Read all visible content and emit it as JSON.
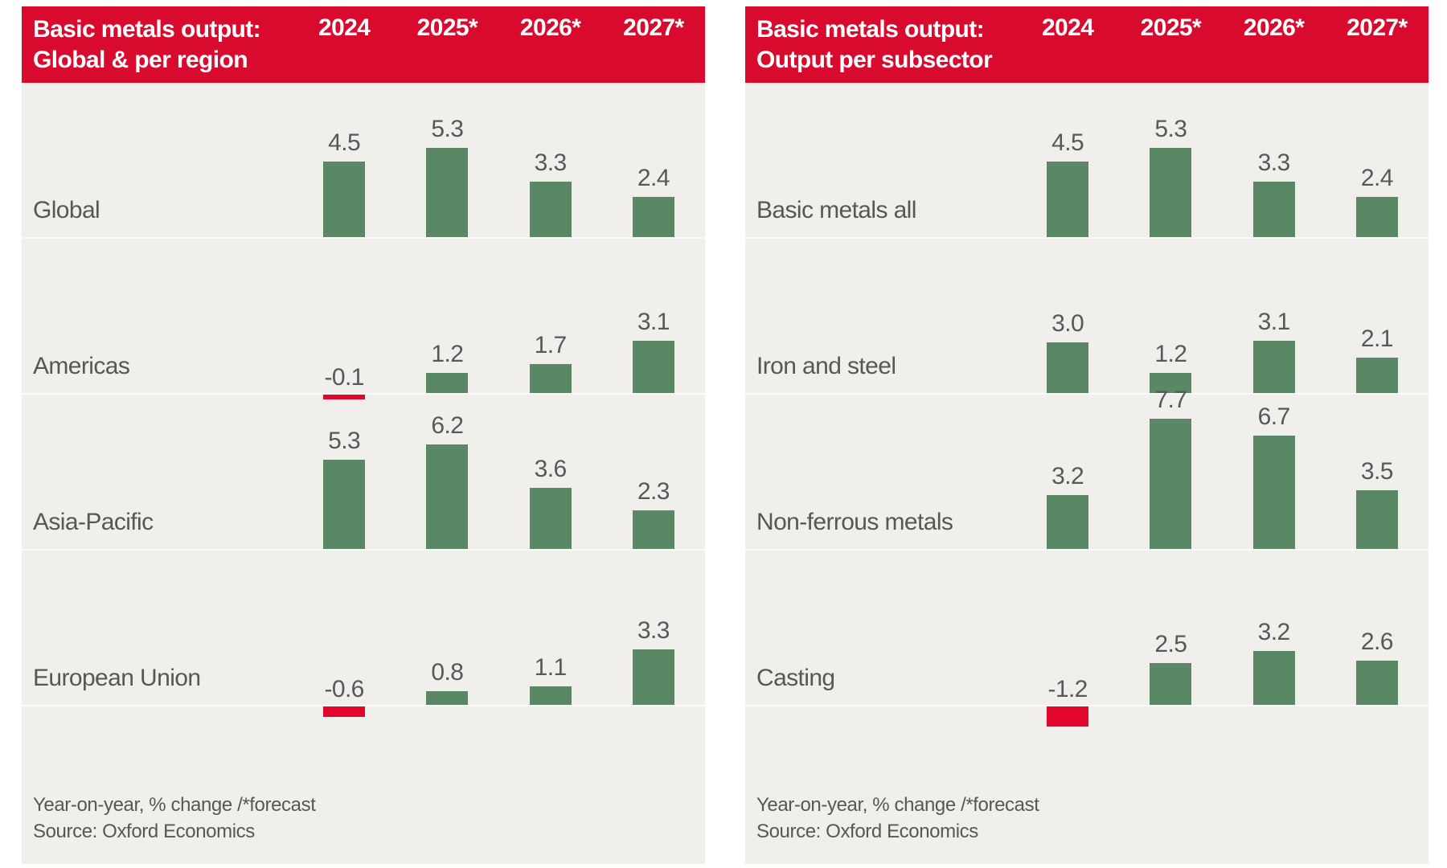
{
  "colors": {
    "header_bg": "#d80a2d",
    "header_text": "#ffffff",
    "panel_bg": "#f0efec",
    "row_line": "#fcfbfa",
    "bar_positive": "#5a8764",
    "bar_negative": "#e2062c",
    "text_gray": "#575756",
    "value_gray": "#58585a"
  },
  "chart_data": [
    {
      "type": "bar",
      "title": "Basic metals output:",
      "subtitle": "Global & per region",
      "columns": [
        "2024",
        "2025*",
        "2026*",
        "2027*"
      ],
      "rows": [
        {
          "label": "Global",
          "values": [
            4.5,
            5.3,
            3.3,
            2.4
          ]
        },
        {
          "label": "Americas",
          "values": [
            -0.1,
            1.2,
            1.7,
            3.1
          ]
        },
        {
          "label": "Asia-Pacific",
          "values": [
            5.3,
            6.2,
            3.6,
            2.3
          ]
        },
        {
          "label": "European Union",
          "values": [
            -0.6,
            0.8,
            1.1,
            3.3
          ]
        }
      ],
      "ylim": [
        -1.5,
        8
      ],
      "grid": false,
      "legend_position": "none",
      "footnote": "Year-on-year, % change /*forecast",
      "source": "Source: Oxford Economics"
    },
    {
      "type": "bar",
      "title": "Basic metals output:",
      "subtitle": "Output per subsector",
      "columns": [
        "2024",
        "2025*",
        "2026*",
        "2027*"
      ],
      "rows": [
        {
          "label": "Basic metals all",
          "values": [
            4.5,
            5.3,
            3.3,
            2.4
          ]
        },
        {
          "label": "Iron and steel",
          "values": [
            3.0,
            1.2,
            3.1,
            2.1
          ]
        },
        {
          "label": "Non-ferrous metals",
          "values": [
            3.2,
            7.7,
            6.7,
            3.5
          ]
        },
        {
          "label": "Casting",
          "values": [
            -1.2,
            2.5,
            3.2,
            2.6
          ]
        }
      ],
      "ylim": [
        -1.5,
        8
      ],
      "grid": false,
      "legend_position": "none",
      "footnote": "Year-on-year, % change /*forecast",
      "source": "Source: Oxford Economics"
    }
  ]
}
